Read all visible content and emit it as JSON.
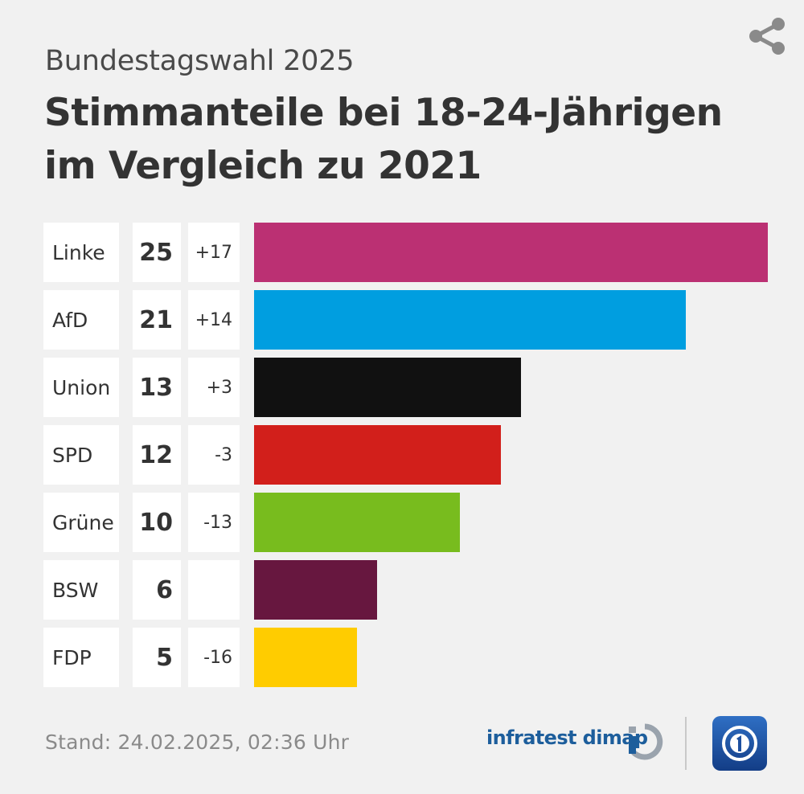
{
  "header": {
    "subtitle": "Bundestagswahl 2025",
    "title_line1": "Stimmanteile bei 18-24-Jährigen",
    "title_line2": "im Vergleich zu 2021"
  },
  "share": {
    "icon": "share-icon"
  },
  "chart_data": {
    "type": "bar",
    "orientation": "horizontal",
    "subtitle": "Bundestagswahl 2025",
    "title": "Stimmanteile bei 18-24-Jährigen im Vergleich zu 2021",
    "categories": [
      "Linke",
      "AfD",
      "Union",
      "SPD",
      "Grüne",
      "BSW",
      "FDP"
    ],
    "values": [
      25,
      21,
      13,
      12,
      10,
      6,
      5
    ],
    "diff_labels": [
      "+17",
      "+14",
      "+3",
      "-3",
      "-13",
      "",
      "-16"
    ],
    "colors": [
      "#bb3073",
      "#009ee0",
      "#111111",
      "#d21f1b",
      "#78bc1e",
      "#67173f",
      "#ffcc00"
    ],
    "xlim": [
      0,
      25
    ],
    "unit": "%"
  },
  "footer": {
    "stand": "Stand:  24.02.2025, 02:36 Uhr",
    "source": "infratest dimap",
    "source_icon": "infratest-dimap-logo-icon",
    "broadcaster_icon": "ard-logo-icon"
  },
  "colors": {
    "background": "#f1f1f1",
    "text": "#333333",
    "source_blue": "#1d5e9c",
    "ard_blue": "#1e50a0"
  }
}
